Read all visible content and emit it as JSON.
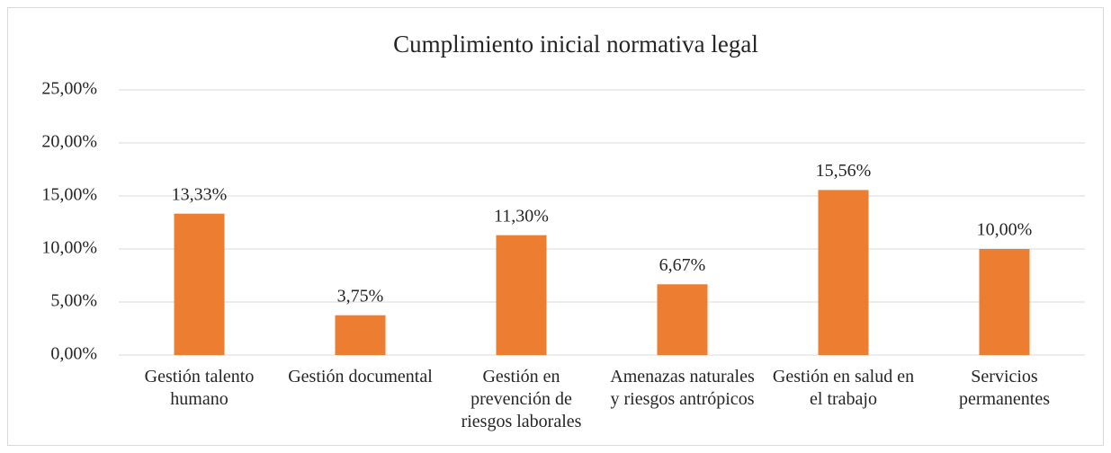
{
  "chart_data": {
    "type": "bar",
    "title": "Cumplimiento inicial normativa legal",
    "categories": [
      "Gestión talento humano",
      "Gestión documental",
      "Gestión en prevención de riesgos laborales",
      "Amenazas naturales y riesgos antrópicos",
      "Gestión en salud en el trabajo",
      "Servicios permanentes"
    ],
    "values": [
      13.33,
      3.75,
      11.3,
      6.67,
      15.56,
      10
    ],
    "value_labels": [
      "13,33%",
      "3,75%",
      "11,30%",
      "6,67%",
      "15,56%",
      "10,00%"
    ],
    "color": "#ed7d31",
    "ylim": [
      0,
      25
    ],
    "yticks": [
      {
        "value": 0,
        "label": "0,00%"
      },
      {
        "value": 5,
        "label": "5,00%"
      },
      {
        "value": 10,
        "label": "10,00%"
      },
      {
        "value": 15,
        "label": "15,00%"
      },
      {
        "value": 20,
        "label": "20,00%"
      },
      {
        "value": 25,
        "label": "25,00%"
      }
    ],
    "grid": true
  }
}
